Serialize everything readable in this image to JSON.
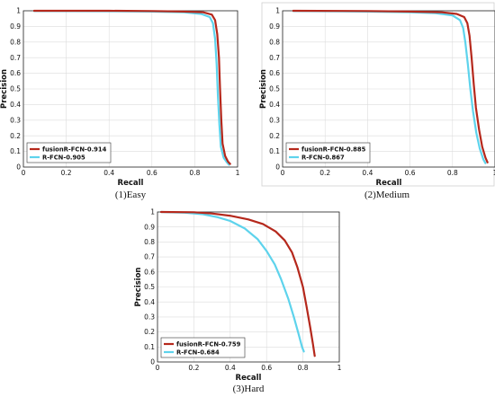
{
  "chart_data": [
    {
      "type": "line",
      "caption": "(1)Easy",
      "xlabel": "Recall",
      "ylabel": "Precision",
      "xlim": [
        0,
        1
      ],
      "ylim": [
        0,
        1
      ],
      "xticks": [
        "0",
        "0.2",
        "0.4",
        "0.6",
        "0.8",
        "1"
      ],
      "yticks": [
        "0",
        "0.1",
        "0.2",
        "0.3",
        "0.4",
        "0.5",
        "0.6",
        "0.7",
        "0.8",
        "0.9",
        "1"
      ],
      "grid": true,
      "legend": "bottom-left",
      "series": [
        {
          "name": "fusionR-FCN-0.914",
          "color": "#b5281c",
          "x": [
            0.05,
            0.4,
            0.6,
            0.75,
            0.84,
            0.88,
            0.895,
            0.905,
            0.913,
            0.918,
            0.924,
            0.93,
            0.942,
            0.955,
            0.965
          ],
          "y": [
            1.0,
            1.0,
            0.998,
            0.995,
            0.99,
            0.975,
            0.94,
            0.85,
            0.7,
            0.5,
            0.3,
            0.15,
            0.07,
            0.035,
            0.02
          ]
        },
        {
          "name": "R-FCN-0.905",
          "color": "#5ed3ec",
          "x": [
            0.05,
            0.4,
            0.6,
            0.75,
            0.83,
            0.87,
            0.885,
            0.895,
            0.902,
            0.908,
            0.915,
            0.922,
            0.935,
            0.95,
            0.96
          ],
          "y": [
            0.998,
            0.997,
            0.995,
            0.99,
            0.98,
            0.96,
            0.92,
            0.82,
            0.66,
            0.46,
            0.27,
            0.13,
            0.06,
            0.03,
            0.015
          ]
        }
      ]
    },
    {
      "type": "line",
      "caption": "(2)Medium",
      "xlabel": "Recall",
      "ylabel": "Precision",
      "xlim": [
        0,
        1
      ],
      "ylim": [
        0,
        1
      ],
      "xticks": [
        "0",
        "0.2",
        "0.4",
        "0.6",
        "0.8",
        "1"
      ],
      "yticks": [
        "0",
        "0.1",
        "0.2",
        "0.3",
        "0.4",
        "0.5",
        "0.6",
        "0.7",
        "0.8",
        "0.9",
        "1"
      ],
      "grid": true,
      "legend": "bottom-left",
      "series": [
        {
          "name": "fusionR-FCN-0.885",
          "color": "#b5281c",
          "x": [
            0.05,
            0.4,
            0.6,
            0.75,
            0.82,
            0.855,
            0.87,
            0.88,
            0.89,
            0.9,
            0.91,
            0.925,
            0.94,
            0.955,
            0.965
          ],
          "y": [
            1.0,
            0.998,
            0.995,
            0.99,
            0.98,
            0.96,
            0.92,
            0.84,
            0.7,
            0.53,
            0.38,
            0.24,
            0.13,
            0.06,
            0.03
          ]
        },
        {
          "name": "R-FCN-0.867",
          "color": "#5ed3ec",
          "x": [
            0.05,
            0.4,
            0.6,
            0.72,
            0.8,
            0.835,
            0.85,
            0.86,
            0.872,
            0.884,
            0.896,
            0.912,
            0.928,
            0.945,
            0.955
          ],
          "y": [
            0.998,
            0.995,
            0.99,
            0.985,
            0.97,
            0.94,
            0.89,
            0.8,
            0.66,
            0.5,
            0.36,
            0.22,
            0.12,
            0.05,
            0.025
          ]
        }
      ]
    },
    {
      "type": "line",
      "caption": "(3)Hard",
      "xlabel": "Recall",
      "ylabel": "Precision",
      "xlim": [
        0,
        1
      ],
      "ylim": [
        0,
        1
      ],
      "xticks": [
        "0",
        "0.2",
        "0.4",
        "0.6",
        "0.8",
        "1"
      ],
      "yticks": [
        "0",
        "0.1",
        "0.2",
        "0.3",
        "0.4",
        "0.5",
        "0.6",
        "0.7",
        "0.8",
        "0.9",
        "1"
      ],
      "grid": true,
      "legend": "bottom-left",
      "series": [
        {
          "name": "fusionR-FCN-0.759",
          "color": "#b5281c",
          "x": [
            0.02,
            0.2,
            0.3,
            0.4,
            0.5,
            0.58,
            0.65,
            0.7,
            0.74,
            0.77,
            0.8,
            0.82,
            0.84,
            0.855,
            0.865
          ],
          "y": [
            1.0,
            0.998,
            0.99,
            0.975,
            0.95,
            0.92,
            0.87,
            0.81,
            0.73,
            0.63,
            0.5,
            0.37,
            0.23,
            0.12,
            0.04
          ]
        },
        {
          "name": "R-FCN-0.684",
          "color": "#5ed3ec",
          "x": [
            0.02,
            0.15,
            0.25,
            0.33,
            0.4,
            0.48,
            0.55,
            0.6,
            0.645,
            0.68,
            0.72,
            0.75,
            0.775,
            0.795,
            0.805
          ],
          "y": [
            1.0,
            0.995,
            0.985,
            0.965,
            0.94,
            0.89,
            0.82,
            0.74,
            0.65,
            0.55,
            0.42,
            0.3,
            0.19,
            0.1,
            0.07
          ]
        }
      ]
    }
  ]
}
